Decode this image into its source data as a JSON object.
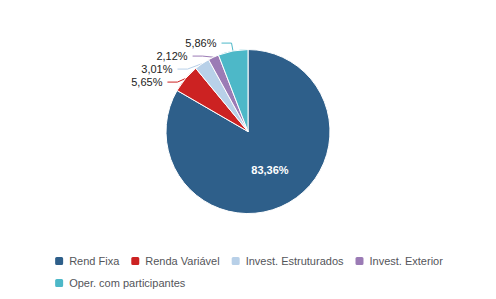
{
  "chart_data": {
    "type": "pie",
    "categories": [
      "Rend Fixa",
      "Renda Variável",
      "Invest. Estruturados",
      "Invest. Exterior",
      "Oper. com participantes"
    ],
    "values": [
      83.36,
      5.65,
      3.01,
      2.12,
      5.86
    ],
    "value_labels": [
      "83,36%",
      "5,65%",
      "3,01%",
      "2,12%",
      "5,86%"
    ],
    "colors": [
      "#2E5F8A",
      "#CC2222",
      "#B8D0E8",
      "#9B7BB5",
      "#4DB8C8"
    ],
    "legend": "bottom",
    "data_labels": true
  }
}
